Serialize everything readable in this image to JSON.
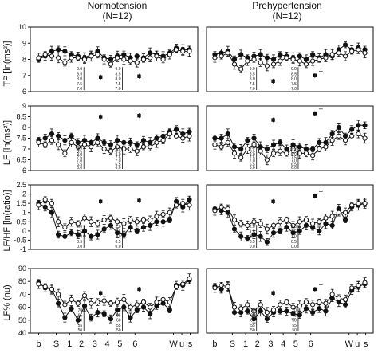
{
  "titles": {
    "normo": "Normotension",
    "normo_n": "(N=12)",
    "prehyp": "Prehypertension",
    "prehyp_n": "(N=12)"
  },
  "row_labels": [
    "TP [ln(ms²)]",
    "LF [ln(ms²)]",
    "LF/HF [ln(ratio)]",
    "LF% (nu)"
  ],
  "x_tick_labels": [
    "b",
    "S",
    "1",
    "2",
    "3",
    "4",
    "5",
    "6",
    "W",
    "u",
    "s"
  ],
  "colors": {
    "ink": "#111111",
    "open_fill": "#ffffff",
    "closed_fill": "#111111"
  },
  "chart_data": [
    {
      "type": "line",
      "panel": "TP normotension",
      "ylabel": "TP [ln(ms²)]",
      "ylim": [
        6,
        10
      ],
      "yticks": [
        6,
        7,
        8,
        9,
        10
      ],
      "series": [
        {
          "marker": "closed",
          "values": [
            8.0,
            8.2,
            8.5,
            8.6,
            8.5,
            8.3,
            8.2,
            8.1,
            8.3,
            8.5,
            8.1,
            8.0,
            8.2,
            8.3,
            8.1,
            8.2,
            8.1,
            8.4,
            8.3,
            8.2,
            8.4,
            8.7,
            8.6,
            8.6
          ]
        },
        {
          "marker": "open",
          "values": [
            8.1,
            8.3,
            8.2,
            8.1,
            7.8,
            8.1,
            8.1,
            8.0,
            8.2,
            8.3,
            8.0,
            7.7,
            8.1,
            8.0,
            7.9,
            7.8,
            8.0,
            8.1,
            8.2,
            8.0,
            8.3,
            8.6,
            8.5,
            8.5
          ]
        }
      ],
      "inset": {
        "scale_labels": [
          "9.0",
          "8.5",
          "8.0",
          "7.5",
          "7.0"
        ],
        "closed_mean": 6.9,
        "open_mean": 6.95
      },
      "annotation": ""
    },
    {
      "type": "line",
      "panel": "TP prehypertension",
      "ylim": [
        6,
        10
      ],
      "series": [
        {
          "marker": "closed",
          "values": [
            8.3,
            8.4,
            8.5,
            8.0,
            8.3,
            8.1,
            8.2,
            8.3,
            8.1,
            8.0,
            8.3,
            8.2,
            8.1,
            8.2,
            8.0,
            8.3,
            8.1,
            8.3,
            8.2,
            8.6,
            8.9,
            8.6,
            8.7,
            8.6
          ]
        },
        {
          "marker": "open",
          "values": [
            8.1,
            8.2,
            8.4,
            7.7,
            7.4,
            7.9,
            8.0,
            7.8,
            7.6,
            7.7,
            7.9,
            8.1,
            8.0,
            7.9,
            7.7,
            7.9,
            8.0,
            8.1,
            8.3,
            8.4,
            8.2,
            8.5,
            8.6,
            8.4
          ]
        }
      ],
      "inset": {
        "scale_labels": [
          "9.0",
          "8.5",
          "8.0",
          "7.5",
          "7.0"
        ],
        "closed_mean": 6.65,
        "open_mean": 7.0
      },
      "annotation": "†"
    },
    {
      "type": "line",
      "panel": "LF normotension",
      "ylabel": "LF [ln(ms²)]",
      "ylim": [
        6,
        9
      ],
      "yticks": [
        6.0,
        6.5,
        7.0,
        7.5,
        8.0,
        8.5,
        9.0
      ],
      "series": [
        {
          "marker": "closed",
          "values": [
            7.4,
            7.5,
            7.7,
            7.6,
            7.4,
            7.6,
            7.3,
            7.4,
            7.3,
            7.5,
            7.3,
            7.2,
            7.4,
            7.3,
            7.3,
            7.2,
            7.4,
            7.3,
            7.5,
            7.6,
            7.8,
            7.9,
            7.7,
            7.8
          ]
        },
        {
          "marker": "open",
          "values": [
            7.3,
            7.2,
            7.4,
            7.2,
            6.8,
            7.3,
            7.1,
            7.2,
            7.1,
            7.3,
            7.0,
            6.9,
            7.1,
            7.0,
            7.0,
            6.9,
            7.1,
            7.1,
            7.3,
            7.4,
            7.7,
            7.6,
            7.5,
            7.6
          ]
        }
      ],
      "inset": {
        "scale_labels": [
          "9.0",
          "8.5",
          "8.0",
          "7.5",
          "7.0",
          "6.5",
          "6.0"
        ],
        "closed_mean": 8.5,
        "open_mean": 8.55
      },
      "annotation": ""
    },
    {
      "type": "line",
      "panel": "LF prehypertension",
      "ylim": [
        6,
        9
      ],
      "series": [
        {
          "marker": "closed",
          "values": [
            7.5,
            7.5,
            7.7,
            7.1,
            7.0,
            7.4,
            7.5,
            7.1,
            7.0,
            7.2,
            7.3,
            7.0,
            7.2,
            7.1,
            7.0,
            7.0,
            7.3,
            7.3,
            7.7,
            8.0,
            7.6,
            7.9,
            8.1,
            8.1
          ]
        },
        {
          "marker": "open",
          "values": [
            7.2,
            7.1,
            7.3,
            6.8,
            6.6,
            7.0,
            7.2,
            6.9,
            6.5,
            6.8,
            6.9,
            6.8,
            7.0,
            6.8,
            6.8,
            6.7,
            7.0,
            7.1,
            7.4,
            7.6,
            7.4,
            7.6,
            7.7,
            7.5
          ]
        }
      ],
      "inset": {
        "scale_labels": [
          "9.0",
          "8.5",
          "8.0",
          "7.5",
          "7.0",
          "6.5",
          "6.0"
        ],
        "closed_mean": 8.35,
        "open_mean": 8.65
      },
      "annotation": "†"
    },
    {
      "type": "line",
      "panel": "LF/HF normotension",
      "ylabel": "LF/HF [ln(ratio)]",
      "ylim": [
        -1.0,
        2.5
      ],
      "yticks": [
        -1.0,
        -0.5,
        0.0,
        0.5,
        1.0,
        1.5,
        2.0,
        2.5
      ],
      "series": [
        {
          "marker": "closed",
          "values": [
            1.5,
            1.3,
            1.0,
            -0.2,
            -0.3,
            -0.1,
            -0.2,
            0.0,
            -0.3,
            -0.2,
            0.1,
            0.3,
            -0.1,
            -0.2,
            0.2,
            0.0,
            0.2,
            0.3,
            0.5,
            0.5,
            0.6,
            1.6,
            1.3,
            1.7
          ]
        },
        {
          "marker": "open",
          "values": [
            1.4,
            1.7,
            1.5,
            0.5,
            0.2,
            0.5,
            0.4,
            0.7,
            0.5,
            0.4,
            0.6,
            0.7,
            0.5,
            0.4,
            0.6,
            0.5,
            0.6,
            0.6,
            0.8,
            0.9,
            1.0,
            1.4,
            1.5,
            1.4
          ]
        }
      ],
      "inset": {
        "scale_labels": [
          "2.0",
          "1.5",
          "1.0",
          "0.5",
          "0.0"
        ],
        "closed_mean": 1.6,
        "open_mean": 1.65
      },
      "annotation": ""
    },
    {
      "type": "line",
      "panel": "LF/HF prehypertension",
      "ylim": [
        -1.0,
        2.5
      ],
      "series": [
        {
          "marker": "closed",
          "values": [
            1.2,
            1.1,
            1.0,
            0.1,
            -0.3,
            -0.4,
            -0.2,
            -0.3,
            -0.6,
            -0.1,
            0.0,
            0.2,
            -0.1,
            0.0,
            0.3,
            0.2,
            0.0,
            0.4,
            0.3,
            1.2,
            0.6,
            1.3,
            1.4,
            1.5
          ]
        },
        {
          "marker": "open",
          "values": [
            1.1,
            1.3,
            1.2,
            0.6,
            0.4,
            0.3,
            0.5,
            0.4,
            0.1,
            0.3,
            0.5,
            0.6,
            0.3,
            0.5,
            0.6,
            0.4,
            0.5,
            0.7,
            0.8,
            1.0,
            1.0,
            1.4,
            1.5,
            1.5
          ]
        }
      ],
      "inset": {
        "scale_labels": [
          "2.0",
          "1.5",
          "1.0",
          "0.5",
          "0.0"
        ],
        "closed_mean": 1.6,
        "open_mean": 1.9
      },
      "annotation": "†"
    },
    {
      "type": "line",
      "panel": "LF% normotension",
      "ylabel": "LF% (nu)",
      "ylim": [
        40,
        90
      ],
      "yticks": [
        40,
        50,
        60,
        70,
        80,
        90
      ],
      "series": [
        {
          "marker": "closed",
          "values": [
            79,
            75,
            74,
            63,
            52,
            59,
            50,
            61,
            52,
            56,
            55,
            51,
            58,
            60,
            52,
            58,
            60,
            55,
            61,
            63,
            58,
            77,
            77,
            81
          ]
        },
        {
          "marker": "open",
          "values": [
            78,
            76,
            74,
            70,
            62,
            66,
            63,
            69,
            63,
            64,
            65,
            63,
            64,
            66,
            60,
            62,
            64,
            60,
            64,
            66,
            64,
            76,
            78,
            82
          ]
        }
      ],
      "inset": {
        "scale_labels": [
          "70",
          "65",
          "60",
          "55",
          "50"
        ],
        "closed_mean": 71,
        "open_mean": 74
      },
      "annotation": ""
    },
    {
      "type": "line",
      "panel": "LF% prehypertension",
      "ylim": [
        40,
        90
      ],
      "series": [
        {
          "marker": "closed",
          "values": [
            76,
            74,
            76,
            56,
            56,
            57,
            51,
            57,
            51,
            56,
            57,
            57,
            55,
            54,
            59,
            56,
            59,
            57,
            67,
            64,
            62,
            73,
            76,
            78
          ]
        },
        {
          "marker": "open",
          "values": [
            75,
            77,
            76,
            60,
            59,
            62,
            57,
            62,
            56,
            58,
            62,
            64,
            60,
            61,
            64,
            62,
            64,
            63,
            70,
            67,
            66,
            75,
            77,
            79
          ]
        }
      ],
      "inset": {
        "scale_labels": [
          "70",
          "65",
          "60",
          "55",
          "50"
        ],
        "closed_mean": 71,
        "open_mean": 74
      },
      "annotation": "†"
    }
  ]
}
